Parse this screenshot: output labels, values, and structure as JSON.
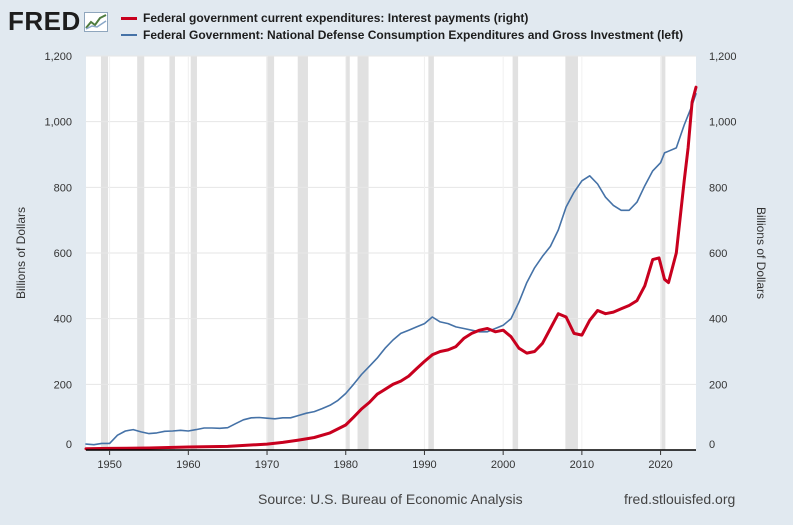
{
  "brand": {
    "logo_text": "FRED"
  },
  "footer": {
    "source": "Source: U.S. Bureau of Economic Analysis",
    "url": "fred.stlouisfed.org"
  },
  "chart_data": {
    "type": "line",
    "x_axis": {
      "range": [
        1947,
        2024.5
      ],
      "ticks": [
        1950,
        1960,
        1970,
        1980,
        1990,
        2000,
        2010,
        2020
      ],
      "tick_labels": [
        "1950",
        "1960",
        "1970",
        "1980",
        "1990",
        "2000",
        "2010",
        "2020"
      ]
    },
    "y_left": {
      "label": "Billions of Dollars",
      "range": [
        0,
        1200
      ],
      "ticks": [
        0,
        200,
        400,
        600,
        800,
        1000,
        1200
      ],
      "tick_labels": [
        "0",
        "200",
        "400",
        "600",
        "800",
        "1,000",
        "1,200"
      ]
    },
    "y_right": {
      "label": "Billions of Dollars",
      "range": [
        0,
        1200
      ],
      "ticks": [
        0,
        200,
        400,
        600,
        800,
        1000,
        1200
      ],
      "tick_labels": [
        "0",
        "200",
        "400",
        "600",
        "800",
        "1,000",
        "1,200"
      ]
    },
    "grid": true,
    "legend_position": "top",
    "recessions": [
      [
        1948.9,
        1949.8
      ],
      [
        1953.5,
        1954.4
      ],
      [
        1957.6,
        1958.3
      ],
      [
        1960.3,
        1961.1
      ],
      [
        1969.9,
        1970.9
      ],
      [
        1973.9,
        1975.2
      ],
      [
        1980.0,
        1980.5
      ],
      [
        1981.5,
        1982.9
      ],
      [
        1990.5,
        1991.2
      ],
      [
        2001.2,
        2001.9
      ],
      [
        2007.9,
        2009.5
      ],
      [
        2020.1,
        2020.4
      ]
    ],
    "series": [
      {
        "name": "Federal government current expenditures: Interest payments (right)",
        "axis": "right",
        "color": "#c8001e",
        "points": [
          [
            1947,
            4
          ],
          [
            1950,
            5
          ],
          [
            1955,
            6
          ],
          [
            1960,
            9
          ],
          [
            1965,
            11
          ],
          [
            1970,
            18
          ],
          [
            1972,
            23
          ],
          [
            1974,
            30
          ],
          [
            1976,
            38
          ],
          [
            1978,
            52
          ],
          [
            1980,
            76
          ],
          [
            1981,
            100
          ],
          [
            1982,
            125
          ],
          [
            1983,
            145
          ],
          [
            1984,
            170
          ],
          [
            1985,
            185
          ],
          [
            1986,
            200
          ],
          [
            1987,
            210
          ],
          [
            1988,
            225
          ],
          [
            1989,
            248
          ],
          [
            1990,
            270
          ],
          [
            1991,
            290
          ],
          [
            1992,
            300
          ],
          [
            1993,
            305
          ],
          [
            1994,
            315
          ],
          [
            1995,
            340
          ],
          [
            1996,
            355
          ],
          [
            1997,
            365
          ],
          [
            1998,
            370
          ],
          [
            1999,
            360
          ],
          [
            2000,
            365
          ],
          [
            2001,
            345
          ],
          [
            2002,
            310
          ],
          [
            2003,
            295
          ],
          [
            2004,
            300
          ],
          [
            2005,
            325
          ],
          [
            2006,
            370
          ],
          [
            2007,
            415
          ],
          [
            2008,
            405
          ],
          [
            2009,
            355
          ],
          [
            2010,
            350
          ],
          [
            2011,
            395
          ],
          [
            2012,
            425
          ],
          [
            2013,
            415
          ],
          [
            2014,
            420
          ],
          [
            2015,
            430
          ],
          [
            2016,
            440
          ],
          [
            2017,
            455
          ],
          [
            2018,
            500
          ],
          [
            2019,
            580
          ],
          [
            2019.8,
            585
          ],
          [
            2020.5,
            520
          ],
          [
            2021,
            510
          ],
          [
            2022,
            600
          ],
          [
            2023,
            820
          ],
          [
            2023.5,
            920
          ],
          [
            2024,
            1060
          ],
          [
            2024.5,
            1105
          ]
        ]
      },
      {
        "name": "Federal Government: National Defense Consumption Expenditures and Gross Investment (left)",
        "axis": "left",
        "color": "#4572a7",
        "points": [
          [
            1947,
            18
          ],
          [
            1948,
            16
          ],
          [
            1949,
            20
          ],
          [
            1950,
            20
          ],
          [
            1951,
            45
          ],
          [
            1952,
            58
          ],
          [
            1953,
            62
          ],
          [
            1954,
            55
          ],
          [
            1955,
            50
          ],
          [
            1956,
            52
          ],
          [
            1957,
            57
          ],
          [
            1958,
            58
          ],
          [
            1959,
            60
          ],
          [
            1960,
            58
          ],
          [
            1961,
            62
          ],
          [
            1962,
            67
          ],
          [
            1963,
            67
          ],
          [
            1964,
            66
          ],
          [
            1965,
            68
          ],
          [
            1966,
            80
          ],
          [
            1967,
            92
          ],
          [
            1968,
            98
          ],
          [
            1969,
            99
          ],
          [
            1970,
            97
          ],
          [
            1971,
            95
          ],
          [
            1972,
            98
          ],
          [
            1973,
            98
          ],
          [
            1974,
            105
          ],
          [
            1975,
            112
          ],
          [
            1976,
            117
          ],
          [
            1977,
            126
          ],
          [
            1978,
            136
          ],
          [
            1979,
            151
          ],
          [
            1980,
            172
          ],
          [
            1981,
            200
          ],
          [
            1982,
            230
          ],
          [
            1983,
            255
          ],
          [
            1984,
            280
          ],
          [
            1985,
            310
          ],
          [
            1986,
            335
          ],
          [
            1987,
            355
          ],
          [
            1988,
            365
          ],
          [
            1989,
            375
          ],
          [
            1990,
            385
          ],
          [
            1991,
            405
          ],
          [
            1992,
            390
          ],
          [
            1993,
            385
          ],
          [
            1994,
            375
          ],
          [
            1995,
            370
          ],
          [
            1996,
            365
          ],
          [
            1997,
            360
          ],
          [
            1998,
            360
          ],
          [
            1999,
            370
          ],
          [
            2000,
            380
          ],
          [
            2001,
            400
          ],
          [
            2002,
            450
          ],
          [
            2003,
            510
          ],
          [
            2004,
            555
          ],
          [
            2005,
            590
          ],
          [
            2006,
            620
          ],
          [
            2007,
            670
          ],
          [
            2008,
            740
          ],
          [
            2009,
            785
          ],
          [
            2010,
            820
          ],
          [
            2011,
            835
          ],
          [
            2012,
            810
          ],
          [
            2013,
            770
          ],
          [
            2014,
            745
          ],
          [
            2015,
            730
          ],
          [
            2016,
            730
          ],
          [
            2017,
            755
          ],
          [
            2018,
            805
          ],
          [
            2019,
            850
          ],
          [
            2020,
            875
          ],
          [
            2020.5,
            905
          ],
          [
            2021,
            910
          ],
          [
            2022,
            920
          ],
          [
            2023,
            990
          ],
          [
            2024,
            1050
          ],
          [
            2024.5,
            1085
          ]
        ]
      }
    ]
  }
}
